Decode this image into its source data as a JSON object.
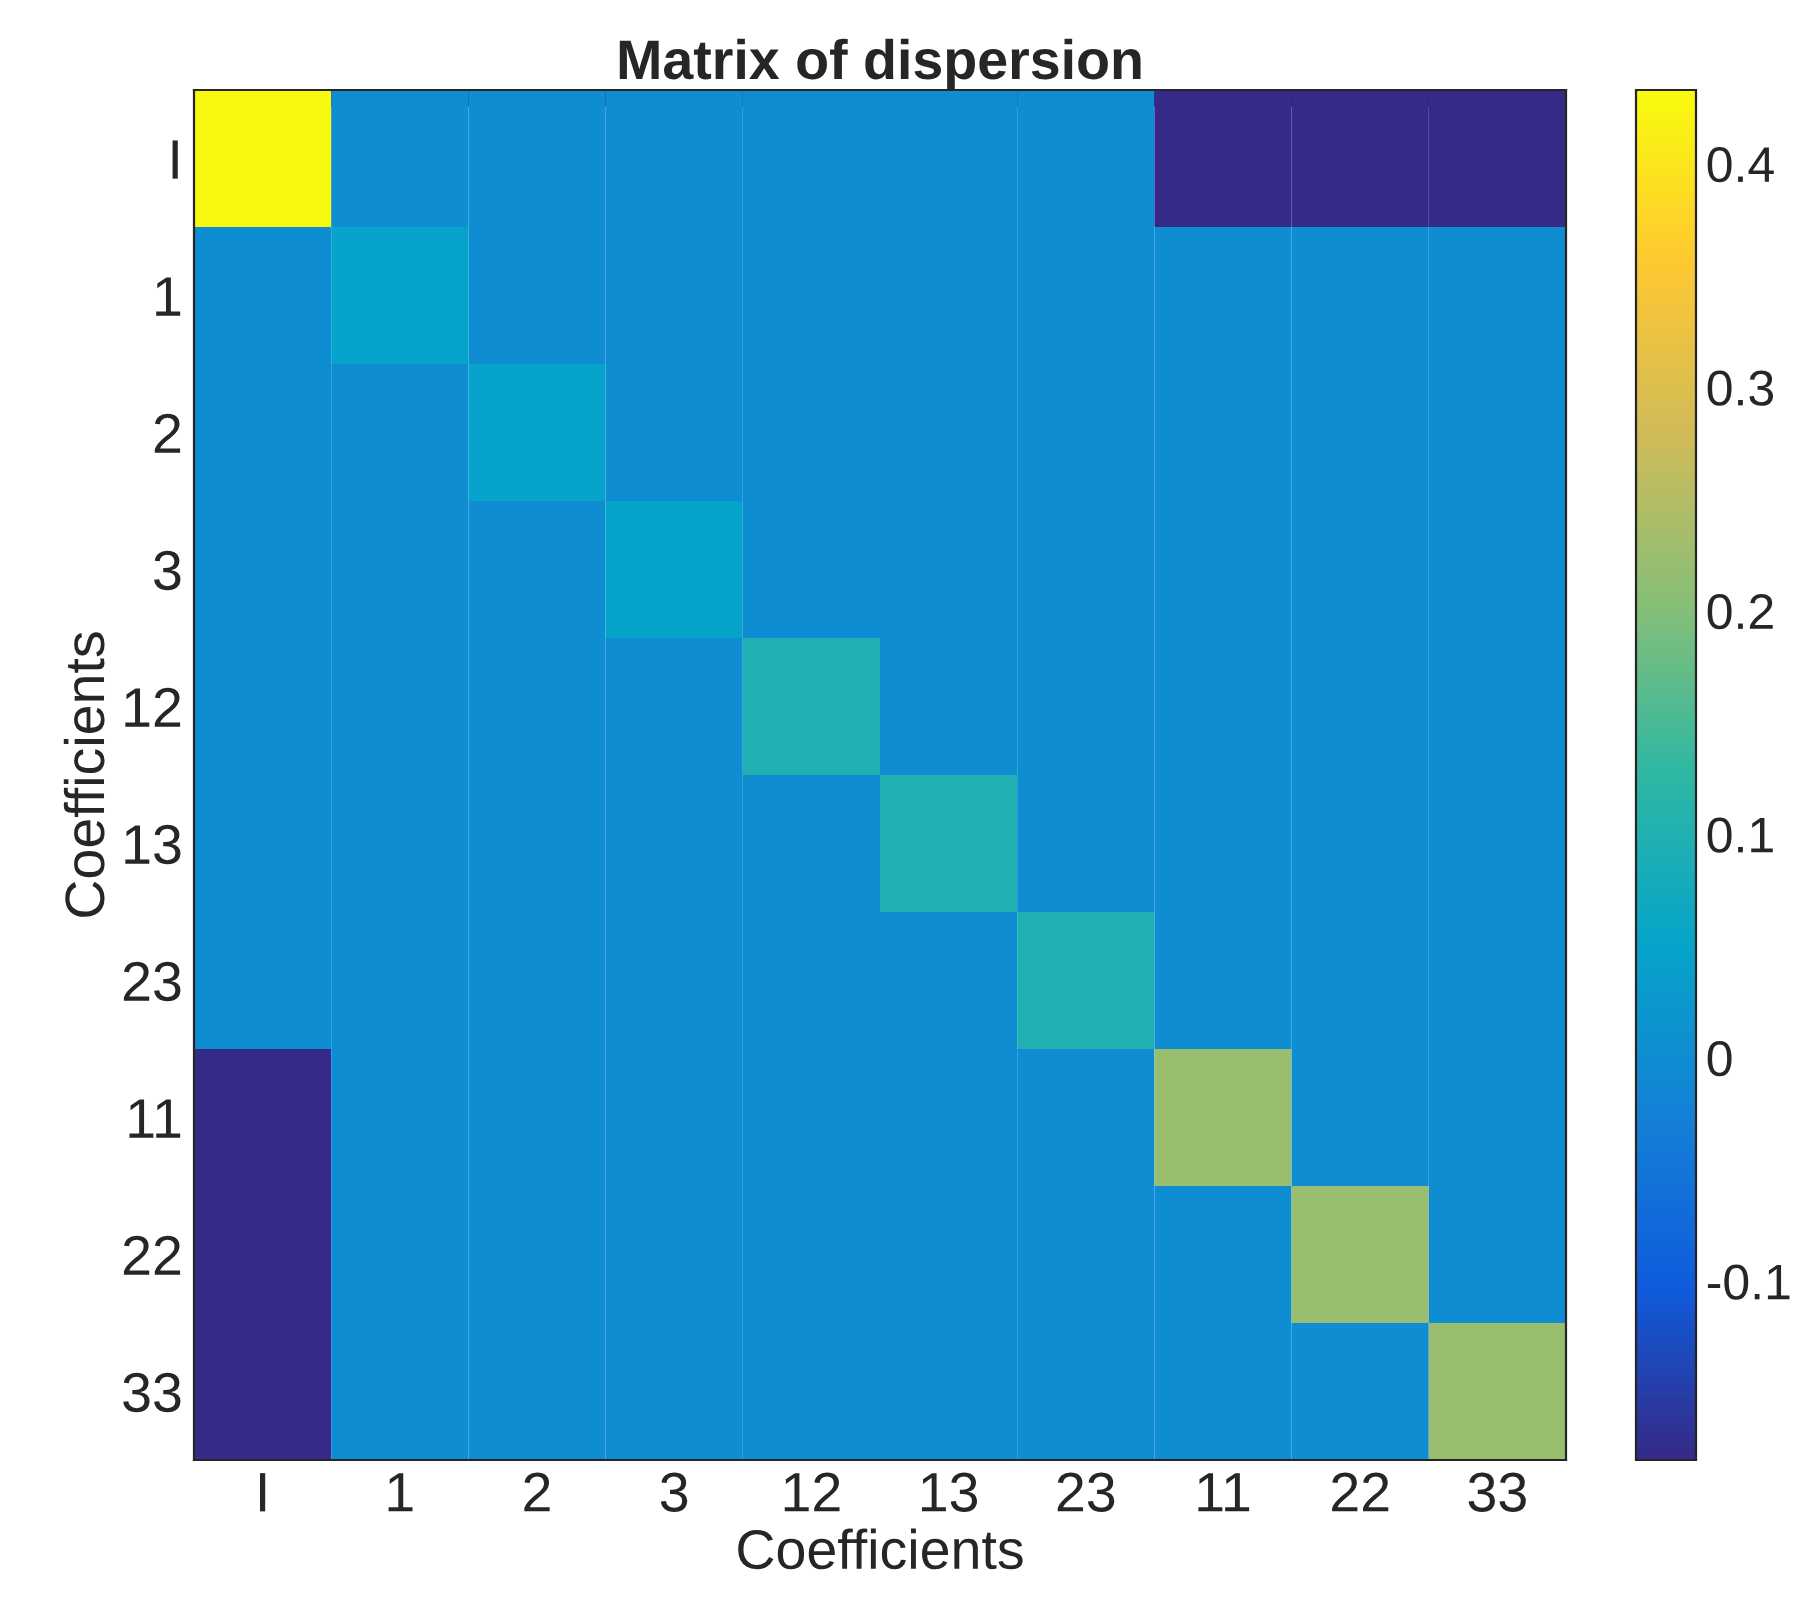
{
  "chart_data": {
    "type": "heatmap",
    "title": "Matrix of dispersion",
    "xlabel": "Coefficients",
    "ylabel": "Coefficients",
    "categories": [
      "I",
      "1",
      "2",
      "3",
      "12",
      "13",
      "23",
      "11",
      "22",
      "33"
    ],
    "y_categories": [
      "I",
      "1",
      "2",
      "3",
      "12",
      "13",
      "23",
      "11",
      "22",
      "33"
    ],
    "cells": [
      [
        0.43,
        0,
        0,
        0,
        0,
        0,
        0,
        -0.18,
        -0.18,
        -0.18
      ],
      [
        0,
        0.05,
        0,
        0,
        0,
        0,
        0,
        0,
        0,
        0
      ],
      [
        0,
        0,
        0.05,
        0,
        0,
        0,
        0,
        0,
        0,
        0
      ],
      [
        0,
        0,
        0,
        0.05,
        0,
        0,
        0,
        0,
        0,
        0
      ],
      [
        0,
        0,
        0,
        0,
        0.1,
        0,
        0,
        0,
        0,
        0
      ],
      [
        0,
        0,
        0,
        0,
        0,
        0.1,
        0,
        0,
        0,
        0
      ],
      [
        0,
        0,
        0,
        0,
        0,
        0,
        0.1,
        0,
        0,
        0
      ],
      [
        -0.18,
        0,
        0,
        0,
        0,
        0,
        0,
        0.22,
        0,
        0
      ],
      [
        -0.18,
        0,
        0,
        0,
        0,
        0,
        0,
        0,
        0.22,
        0
      ],
      [
        -0.18,
        0,
        0,
        0,
        0,
        0,
        0,
        0,
        0,
        0.22
      ]
    ],
    "clim": [
      -0.18,
      0.433
    ],
    "cticks": [
      {
        "value": -0.1,
        "label": "-0.1"
      },
      0,
      0.1,
      0.2,
      0.3,
      0.4
    ]
  }
}
